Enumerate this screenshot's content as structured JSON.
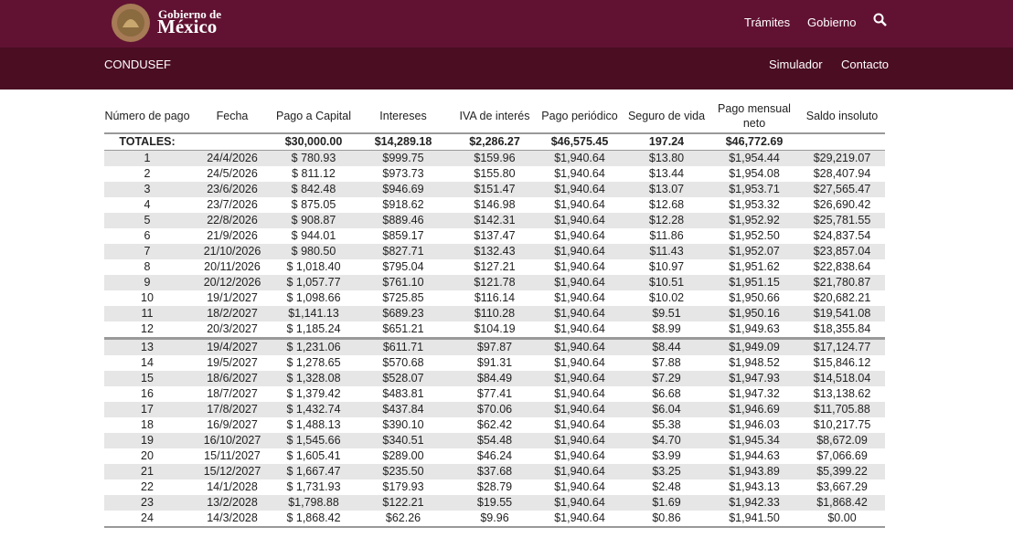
{
  "header": {
    "logo_line1": "Gobierno de",
    "logo_line2": "México",
    "nav": [
      "Trámites",
      "Gobierno"
    ]
  },
  "subheader": {
    "brand": "CONDUSEF",
    "links": [
      "Simulador",
      "Contacto"
    ]
  },
  "table": {
    "columns": [
      "Número de pago",
      "Fecha",
      "Pago a Capital",
      "Intereses",
      "IVA de interés",
      "Pago periódico",
      "Seguro de vida",
      "Pago mensual neto",
      "Saldo insoluto"
    ],
    "totals": {
      "label": "TOTALES:",
      "capital": "$30,000.00",
      "intereses": "$14,289.18",
      "iva": "$2,286.27",
      "pago": "$46,575.45",
      "seguro": "197.24",
      "neto": "$46,772.69"
    },
    "rows": [
      [
        "1",
        "24/4/2026",
        "$ 780.93",
        "$999.75",
        "$159.96",
        "$1,940.64",
        "$13.80",
        "$1,954.44",
        "$29,219.07"
      ],
      [
        "2",
        "24/5/2026",
        "$ 811.12",
        "$973.73",
        "$155.80",
        "$1,940.64",
        "$13.44",
        "$1,954.08",
        "$28,407.94"
      ],
      [
        "3",
        "23/6/2026",
        "$ 842.48",
        "$946.69",
        "$151.47",
        "$1,940.64",
        "$13.07",
        "$1,953.71",
        "$27,565.47"
      ],
      [
        "4",
        "23/7/2026",
        "$ 875.05",
        "$918.62",
        "$146.98",
        "$1,940.64",
        "$12.68",
        "$1,953.32",
        "$26,690.42"
      ],
      [
        "5",
        "22/8/2026",
        "$ 908.87",
        "$889.46",
        "$142.31",
        "$1,940.64",
        "$12.28",
        "$1,952.92",
        "$25,781.55"
      ],
      [
        "6",
        "21/9/2026",
        "$ 944.01",
        "$859.17",
        "$137.47",
        "$1,940.64",
        "$11.86",
        "$1,952.50",
        "$24,837.54"
      ],
      [
        "7",
        "21/10/2026",
        "$ 980.50",
        "$827.71",
        "$132.43",
        "$1,940.64",
        "$11.43",
        "$1,952.07",
        "$23,857.04"
      ],
      [
        "8",
        "20/11/2026",
        "$ 1,018.40",
        "$795.04",
        "$127.21",
        "$1,940.64",
        "$10.97",
        "$1,951.62",
        "$22,838.64"
      ],
      [
        "9",
        "20/12/2026",
        "$ 1,057.77",
        "$761.10",
        "$121.78",
        "$1,940.64",
        "$10.51",
        "$1,951.15",
        "$21,780.87"
      ],
      [
        "10",
        "19/1/2027",
        "$ 1,098.66",
        "$725.85",
        "$116.14",
        "$1,940.64",
        "$10.02",
        "$1,950.66",
        "$20,682.21"
      ],
      [
        "11",
        "18/2/2027",
        "$1,141.13",
        "$689.23",
        "$110.28",
        "$1,940.64",
        "$9.51",
        "$1,950.16",
        "$19,541.08"
      ],
      [
        "12",
        "20/3/2027",
        "$ 1,185.24",
        "$651.21",
        "$104.19",
        "$1,940.64",
        "$8.99",
        "$1,949.63",
        "$18,355.84"
      ],
      [
        "13",
        "19/4/2027",
        "$ 1,231.06",
        "$611.71",
        "$97.87",
        "$1,940.64",
        "$8.44",
        "$1,949.09",
        "$17,124.77"
      ],
      [
        "14",
        "19/5/2027",
        "$ 1,278.65",
        "$570.68",
        "$91.31",
        "$1,940.64",
        "$7.88",
        "$1,948.52",
        "$15,846.12"
      ],
      [
        "15",
        "18/6/2027",
        "$ 1,328.08",
        "$528.07",
        "$84.49",
        "$1,940.64",
        "$7.29",
        "$1,947.93",
        "$14,518.04"
      ],
      [
        "16",
        "18/7/2027",
        "$ 1,379.42",
        "$483.81",
        "$77.41",
        "$1,940.64",
        "$6.68",
        "$1,947.32",
        "$13,138.62"
      ],
      [
        "17",
        "17/8/2027",
        "$ 1,432.74",
        "$437.84",
        "$70.06",
        "$1,940.64",
        "$6.04",
        "$1,946.69",
        "$11,705.88"
      ],
      [
        "18",
        "16/9/2027",
        "$ 1,488.13",
        "$390.10",
        "$62.42",
        "$1,940.64",
        "$5.38",
        "$1,946.03",
        "$10,217.75"
      ],
      [
        "19",
        "16/10/2027",
        "$ 1,545.66",
        "$340.51",
        "$54.48",
        "$1,940.64",
        "$4.70",
        "$1,945.34",
        "$8,672.09"
      ],
      [
        "20",
        "15/11/2027",
        "$ 1,605.41",
        "$289.00",
        "$46.24",
        "$1,940.64",
        "$3.99",
        "$1,944.63",
        "$7,066.69"
      ],
      [
        "21",
        "15/12/2027",
        "$ 1,667.47",
        "$235.50",
        "$37.68",
        "$1,940.64",
        "$3.25",
        "$1,943.89",
        "$5,399.22"
      ],
      [
        "22",
        "14/1/2028",
        "$ 1,731.93",
        "$179.93",
        "$28.79",
        "$1,940.64",
        "$2.48",
        "$1,943.13",
        "$3,667.29"
      ],
      [
        "23",
        "13/2/2028",
        "$1,798.88",
        "$122.21",
        "$19.55",
        "$1,940.64",
        "$1.69",
        "$1,942.33",
        "$1,868.42"
      ],
      [
        "24",
        "14/3/2028",
        "$ 1,868.42",
        "$62.26",
        "$9.96",
        "$1,940.64",
        "$0.86",
        "$1,941.50",
        "$0.00"
      ]
    ]
  }
}
